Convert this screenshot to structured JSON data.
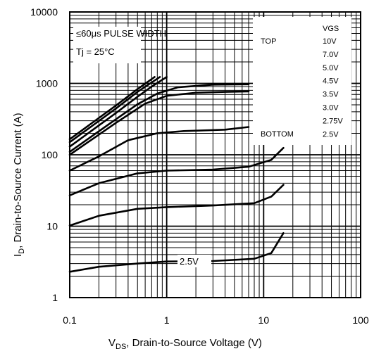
{
  "chart_data": {
    "type": "line",
    "x_scale": "log",
    "y_scale": "log",
    "xlim": [
      0.1,
      100
    ],
    "ylim": [
      1,
      10000
    ],
    "grid": true,
    "xlabel": {
      "main": "V",
      "sub": "DS",
      "rest": ", Drain-to-Source Voltage (V)"
    },
    "ylabel": {
      "main": "I",
      "sub": "D",
      "rest": ", Drain-to-Source Current (A)"
    },
    "x_tick_labels": [
      "0.1",
      "1",
      "10",
      "100"
    ],
    "x_tick_values": [
      0.1,
      1,
      10,
      100
    ],
    "y_tick_labels": [
      "1",
      "10",
      "100",
      "1000",
      "10000"
    ],
    "y_tick_values": [
      1,
      10,
      100,
      1000,
      10000
    ],
    "annotations": {
      "pulse": "≤60μs PULSE WIDTH",
      "tj": "Tj = 25°C",
      "curve_label": "2.5V"
    },
    "legend": {
      "placement": "top-right",
      "header": "VGS",
      "top_label": "TOP",
      "bottom_label": "BOTTOM",
      "entries": [
        "10V",
        "7.0V",
        "5.0V",
        "4.5V",
        "3.5V",
        "3.0V",
        "2.75V",
        "2.5V"
      ]
    },
    "series": [
      {
        "name": "10V",
        "points": [
          [
            0.1,
            165
          ],
          [
            0.3,
            490
          ],
          [
            0.5,
            830
          ],
          [
            0.75,
            1230
          ]
        ]
      },
      {
        "name": "7.0V",
        "points": [
          [
            0.1,
            150
          ],
          [
            0.3,
            445
          ],
          [
            0.5,
            760
          ],
          [
            0.85,
            1230
          ]
        ]
      },
      {
        "name": "5.0V",
        "points": [
          [
            0.1,
            130
          ],
          [
            0.3,
            385
          ],
          [
            0.5,
            650
          ],
          [
            0.7,
            900
          ],
          [
            1.0,
            1230
          ]
        ]
      },
      {
        "name": "4.5V",
        "points": [
          [
            0.1,
            110
          ],
          [
            0.3,
            315
          ],
          [
            0.5,
            510
          ],
          [
            0.8,
            720
          ],
          [
            1.3,
            880
          ],
          [
            3,
            960
          ],
          [
            7,
            970
          ]
        ]
      },
      {
        "name": "3.5V",
        "points": [
          [
            0.1,
            100
          ],
          [
            0.3,
            280
          ],
          [
            0.6,
            520
          ],
          [
            1.0,
            670
          ],
          [
            2,
            740
          ],
          [
            4,
            760
          ],
          [
            7,
            770
          ]
        ]
      },
      {
        "name": "3.0V",
        "points": [
          [
            0.1,
            60
          ],
          [
            0.2,
            95
          ],
          [
            0.4,
            160
          ],
          [
            0.8,
            200
          ],
          [
            1.5,
            215
          ],
          [
            4,
            225
          ],
          [
            7,
            245
          ]
        ]
      },
      {
        "name": "2.75V",
        "points": [
          [
            0.1,
            27
          ],
          [
            0.2,
            40
          ],
          [
            0.5,
            55
          ],
          [
            1.0,
            60
          ],
          [
            3,
            62
          ],
          [
            7,
            68
          ],
          [
            12,
            85
          ],
          [
            16,
            125
          ]
        ]
      },
      {
        "name": "2.5V",
        "points": [
          [
            0.1,
            10.2
          ],
          [
            0.2,
            14
          ],
          [
            0.5,
            17.5
          ],
          [
            1.0,
            18.5
          ],
          [
            3,
            19.5
          ],
          [
            8,
            21
          ],
          [
            12,
            26
          ],
          [
            16,
            38
          ]
        ]
      },
      {
        "name": "",
        "points": [
          [
            0.1,
            2.3
          ],
          [
            0.2,
            2.7
          ],
          [
            0.5,
            3.0
          ],
          [
            1.0,
            3.2
          ],
          [
            3,
            3.25
          ],
          [
            8,
            3.5
          ],
          [
            12,
            4.2
          ],
          [
            16,
            8.0
          ]
        ]
      }
    ]
  }
}
